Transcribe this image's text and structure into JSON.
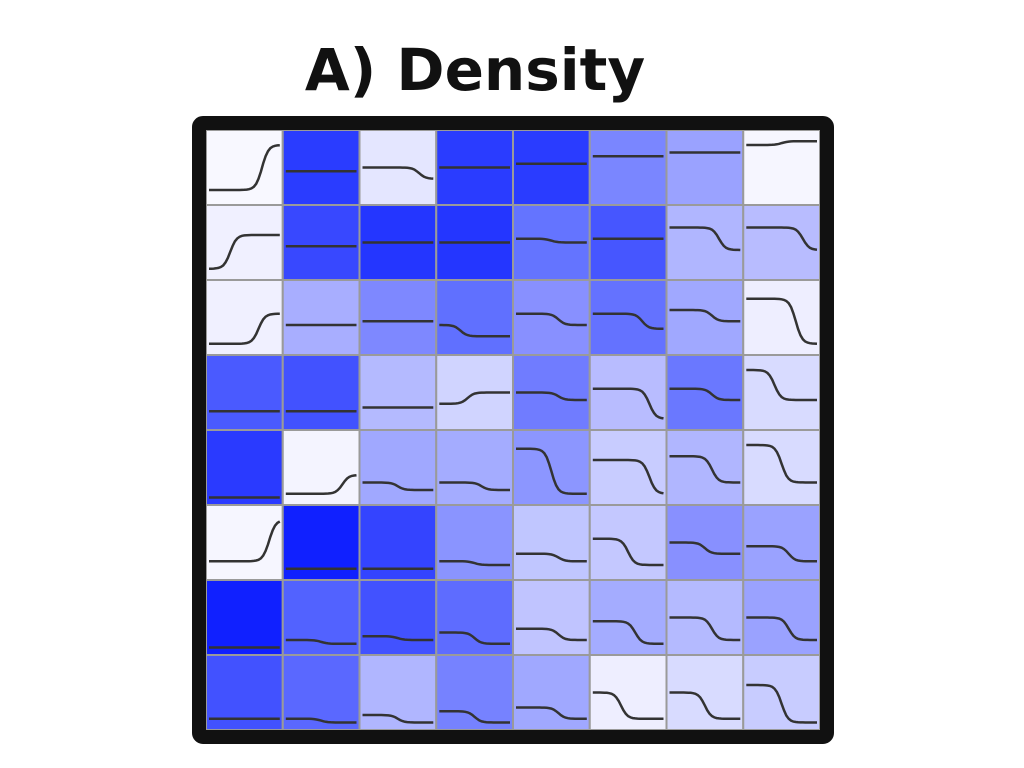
{
  "title": "A) Density",
  "grid": {
    "rows": [
      [
        "#f8f8ff",
        "#2a3cff",
        "#e4e6ff",
        "#2a3cff",
        "#2a3cff",
        "#7a86ff",
        "#9aa2ff",
        "#f6f6ff"
      ],
      [
        "#f0f0ff",
        "#3848ff",
        "#2436ff",
        "#2436ff",
        "#6474ff",
        "#4656ff",
        "#b0b6ff",
        "#b8bcff"
      ],
      [
        "#f0f0ff",
        "#a8aeff",
        "#7e88ff",
        "#6070ff",
        "#8890ff",
        "#6472ff",
        "#a0a8ff",
        "#eeeeff"
      ],
      [
        "#4a5aff",
        "#4252ff",
        "#b4baff",
        "#d0d4ff",
        "#707cff",
        "#b8bcff",
        "#6a78ff",
        "#d8dbff"
      ],
      [
        "#2a3aff",
        "#f4f4ff",
        "#a0a8ff",
        "#a4acff",
        "#8c96ff",
        "#c8ccff",
        "#b0b6ff",
        "#d8dbff"
      ],
      [
        "#f6f6ff",
        "#1020ff",
        "#3444ff",
        "#8a94ff",
        "#c0c6ff",
        "#c4c8ff",
        "#8890ff",
        "#9aa2ff"
      ],
      [
        "#1020ff",
        "#5262ff",
        "#4252ff",
        "#5e6cff",
        "#c0c4ff",
        "#a4acff",
        "#b4baff",
        "#9aa2ff"
      ],
      [
        "#4252ff",
        "#5a68ff",
        "#b0b6ff",
        "#7682ff",
        "#a0a8ff",
        "#eeeeff",
        "#d8dbff",
        "#c8ccff"
      ]
    ]
  }
}
